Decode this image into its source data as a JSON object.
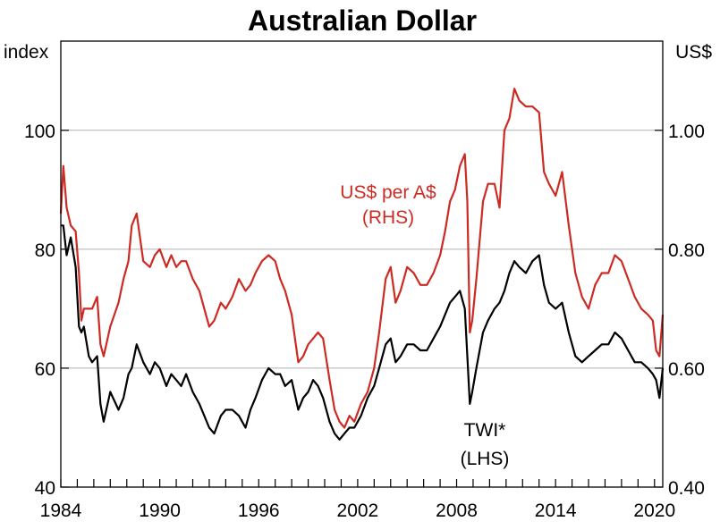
{
  "chart_data": {
    "type": "line",
    "title": "Australian Dollar",
    "left_unit": "index",
    "right_unit": "US$",
    "x_range": [
      1984,
      2020.5
    ],
    "left_axis": {
      "range": [
        40,
        115
      ],
      "ticks": [
        "40",
        "60",
        "80",
        "100"
      ],
      "tick_values": [
        40,
        60,
        80,
        100
      ]
    },
    "right_axis": {
      "range": [
        0.4,
        1.15
      ],
      "ticks": [
        "0.40",
        "0.60",
        "0.80",
        "1.00"
      ],
      "tick_values": [
        0.4,
        0.6,
        0.8,
        1.0
      ]
    },
    "x_ticks": [
      "1984",
      "1990",
      "1996",
      "2002",
      "2008",
      "2014",
      "2020"
    ],
    "x_tick_values": [
      1984,
      1990,
      1996,
      2002,
      2008,
      2014,
      2020
    ],
    "grid": true,
    "colors": {
      "twi": "#000000",
      "usd": "#cc2b24",
      "grid": "#b0b0b0"
    },
    "annotations": {
      "usd": [
        "US$ per A$",
        "(RHS)"
      ],
      "twi": [
        "TWI*",
        "(LHS)"
      ]
    },
    "series": [
      {
        "name": "US$ per A$",
        "axis": "right",
        "color": "#cc2b24",
        "x": [
          1984.0,
          1984.15,
          1984.35,
          1984.6,
          1984.9,
          1985.1,
          1985.25,
          1985.4,
          1985.7,
          1985.9,
          1986.2,
          1986.4,
          1986.6,
          1987.0,
          1987.5,
          1987.8,
          1988.1,
          1988.3,
          1988.6,
          1989.0,
          1989.4,
          1989.7,
          1990.0,
          1990.4,
          1990.7,
          1991.0,
          1991.3,
          1991.6,
          1992.0,
          1992.4,
          1992.7,
          1993.0,
          1993.3,
          1993.7,
          1994.0,
          1994.4,
          1994.8,
          1995.2,
          1995.5,
          1995.8,
          1996.2,
          1996.6,
          1997.0,
          1997.3,
          1997.6,
          1998.0,
          1998.4,
          1998.7,
          1999.0,
          1999.3,
          1999.6,
          1999.9,
          2000.3,
          2000.6,
          2000.9,
          2001.2,
          2001.5,
          2001.8,
          2002.2,
          2002.6,
          2003.0,
          2003.3,
          2003.7,
          2004.0,
          2004.3,
          2004.6,
          2005.0,
          2005.4,
          2005.8,
          2006.2,
          2006.6,
          2007.0,
          2007.3,
          2007.6,
          2007.9,
          2008.2,
          2008.5,
          2008.65,
          2008.8,
          2008.95,
          2009.2,
          2009.6,
          2009.9,
          2010.3,
          2010.6,
          2010.9,
          2011.2,
          2011.5,
          2011.8,
          2012.2,
          2012.6,
          2013.0,
          2013.3,
          2013.6,
          2014.0,
          2014.4,
          2014.8,
          2015.2,
          2015.6,
          2016.0,
          2016.4,
          2016.8,
          2017.2,
          2017.6,
          2018.0,
          2018.4,
          2018.8,
          2019.2,
          2019.6,
          2019.9,
          2020.1,
          2020.3,
          2020.5
        ],
        "values": [
          0.86,
          0.94,
          0.87,
          0.84,
          0.83,
          0.76,
          0.68,
          0.7,
          0.7,
          0.7,
          0.72,
          0.64,
          0.62,
          0.67,
          0.71,
          0.75,
          0.78,
          0.84,
          0.86,
          0.78,
          0.77,
          0.79,
          0.8,
          0.77,
          0.79,
          0.77,
          0.78,
          0.78,
          0.75,
          0.73,
          0.7,
          0.67,
          0.68,
          0.71,
          0.7,
          0.72,
          0.75,
          0.73,
          0.74,
          0.76,
          0.78,
          0.79,
          0.78,
          0.75,
          0.73,
          0.69,
          0.61,
          0.62,
          0.64,
          0.65,
          0.66,
          0.65,
          0.58,
          0.53,
          0.51,
          0.5,
          0.52,
          0.51,
          0.54,
          0.56,
          0.6,
          0.66,
          0.75,
          0.77,
          0.71,
          0.73,
          0.77,
          0.76,
          0.74,
          0.74,
          0.76,
          0.79,
          0.83,
          0.88,
          0.9,
          0.94,
          0.96,
          0.88,
          0.66,
          0.68,
          0.75,
          0.88,
          0.91,
          0.91,
          0.87,
          1.0,
          1.02,
          1.07,
          1.05,
          1.04,
          1.04,
          1.03,
          0.93,
          0.91,
          0.89,
          0.93,
          0.84,
          0.76,
          0.72,
          0.7,
          0.74,
          0.76,
          0.76,
          0.79,
          0.78,
          0.75,
          0.72,
          0.7,
          0.69,
          0.68,
          0.63,
          0.62,
          0.69
        ]
      },
      {
        "name": "TWI*",
        "axis": "left",
        "color": "#000000",
        "x": [
          1984.0,
          1984.15,
          1984.35,
          1984.6,
          1984.9,
          1985.1,
          1985.25,
          1985.4,
          1985.7,
          1985.9,
          1986.2,
          1986.4,
          1986.6,
          1987.0,
          1987.5,
          1987.8,
          1988.1,
          1988.3,
          1988.6,
          1989.0,
          1989.4,
          1989.7,
          1990.0,
          1990.4,
          1990.7,
          1991.0,
          1991.3,
          1991.6,
          1992.0,
          1992.4,
          1992.7,
          1993.0,
          1993.3,
          1993.7,
          1994.0,
          1994.4,
          1994.8,
          1995.2,
          1995.5,
          1995.8,
          1996.2,
          1996.6,
          1997.0,
          1997.3,
          1997.6,
          1998.0,
          1998.4,
          1998.7,
          1999.0,
          1999.3,
          1999.6,
          1999.9,
          2000.3,
          2000.6,
          2000.9,
          2001.2,
          2001.5,
          2001.8,
          2002.2,
          2002.6,
          2003.0,
          2003.3,
          2003.7,
          2004.0,
          2004.3,
          2004.6,
          2005.0,
          2005.4,
          2005.8,
          2006.2,
          2006.6,
          2007.0,
          2007.3,
          2007.6,
          2007.9,
          2008.2,
          2008.5,
          2008.65,
          2008.8,
          2008.95,
          2009.2,
          2009.6,
          2009.9,
          2010.3,
          2010.6,
          2010.9,
          2011.2,
          2011.5,
          2011.8,
          2012.2,
          2012.6,
          2013.0,
          2013.3,
          2013.6,
          2014.0,
          2014.4,
          2014.8,
          2015.2,
          2015.6,
          2016.0,
          2016.4,
          2016.8,
          2017.2,
          2017.6,
          2018.0,
          2018.4,
          2018.8,
          2019.2,
          2019.6,
          2019.9,
          2020.1,
          2020.3,
          2020.5
        ],
        "values": [
          84,
          84,
          79,
          82,
          77,
          67,
          66,
          67,
          62,
          61,
          62,
          54,
          51,
          56,
          53,
          55,
          59,
          60,
          64,
          61,
          59,
          61,
          60,
          57,
          59,
          58,
          57,
          59,
          56,
          54,
          52,
          50,
          49,
          52,
          53,
          53,
          52,
          50,
          53,
          55,
          58,
          60,
          59,
          59,
          57,
          58,
          53,
          55,
          56,
          58,
          57,
          55,
          51,
          49,
          48,
          49,
          50,
          50,
          52,
          55,
          57,
          60,
          64,
          65,
          61,
          62,
          64,
          64,
          63,
          63,
          65,
          67,
          69,
          71,
          72,
          73,
          70,
          62,
          54,
          56,
          60,
          66,
          68,
          70,
          71,
          73,
          76,
          78,
          77,
          76,
          78,
          79,
          74,
          71,
          70,
          71,
          66,
          62,
          61,
          62,
          63,
          64,
          64,
          66,
          65,
          63,
          61,
          61,
          60,
          59,
          58,
          55,
          60
        ]
      }
    ]
  }
}
